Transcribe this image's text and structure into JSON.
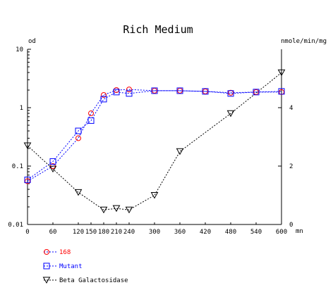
{
  "chart_data": {
    "type": "line",
    "title": "Rich Medium",
    "xlabel": "mn",
    "ylabel": "od",
    "y2label": "nmole/min/mg",
    "x_ticks": [
      0,
      60,
      120,
      150,
      180,
      210,
      240,
      300,
      360,
      420,
      480,
      540,
      600
    ],
    "xlim": [
      0,
      600
    ],
    "ylim": [
      0.01,
      10
    ],
    "y_scale": "log",
    "y_ticks": [
      {
        "value": 0.01,
        "label": "0.01"
      },
      {
        "value": 0.1,
        "label": "0.1"
      },
      {
        "value": 1,
        "label": "1"
      },
      {
        "value": 10,
        "label": "10"
      }
    ],
    "y2lim": [
      0,
      6
    ],
    "y2_ticks": [
      0,
      2,
      4
    ],
    "series": [
      {
        "name": "168",
        "axis": "left",
        "marker": "circle",
        "color": "#ff0000",
        "line_color": "#0000ff",
        "x": [
          0,
          60,
          120,
          150,
          180,
          210,
          240,
          300,
          360,
          420,
          480,
          540,
          600
        ],
        "y": [
          0.055,
          0.1,
          0.3,
          0.8,
          1.65,
          2.0,
          2.05,
          1.95,
          1.95,
          1.9,
          1.8,
          1.85,
          1.85
        ]
      },
      {
        "name": "Mutant",
        "axis": "left",
        "marker": "square",
        "color": "#0000ff",
        "line_color": "#0000ff",
        "x": [
          0,
          60,
          120,
          150,
          180,
          210,
          240,
          300,
          360,
          420,
          480,
          540,
          600
        ],
        "y": [
          0.058,
          0.12,
          0.4,
          0.6,
          1.4,
          1.85,
          1.75,
          1.95,
          1.95,
          1.9,
          1.75,
          1.85,
          1.9
        ]
      },
      {
        "name": "Beta Galactosidase",
        "axis": "right",
        "marker": "triangle-down",
        "color": "#000000",
        "line_color": "#000000",
        "x": [
          0,
          60,
          120,
          180,
          210,
          240,
          300,
          360,
          480,
          600
        ],
        "y": [
          2.7,
          1.9,
          1.1,
          0.5,
          0.55,
          0.5,
          1.0,
          2.5,
          3.8,
          5.2
        ]
      }
    ],
    "grid": false,
    "legend": "bottom-left"
  }
}
